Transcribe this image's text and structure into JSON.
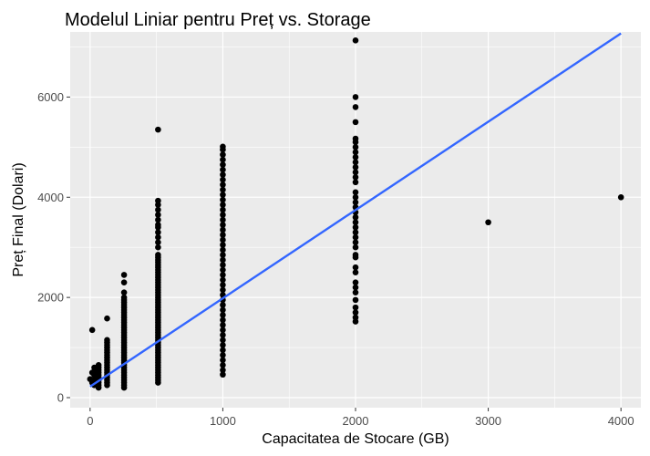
{
  "chart_data": {
    "type": "scatter",
    "title": "Modelul Liniar pentru Preț vs. Storage",
    "xlabel": "Capacitatea de Stocare (GB)",
    "ylabel": "Preț Final (Dolari)",
    "xlim": [
      -150,
      4150
    ],
    "ylim": [
      -200,
      7300
    ],
    "x_ticks": [
      0,
      1000,
      2000,
      3000,
      4000
    ],
    "x_tick_labels": [
      "0",
      "1000",
      "2000",
      "3000",
      "4000"
    ],
    "y_ticks": [
      0,
      2000,
      4000,
      6000
    ],
    "y_tick_labels": [
      "0",
      "2000",
      "4000",
      "6000"
    ],
    "x_minor": [
      500,
      1500,
      2500,
      3500
    ],
    "y_minor": [
      1000,
      3000,
      5000,
      7000
    ],
    "grid": true,
    "legend": "none",
    "colors": {
      "panel_background": "#ebebeb",
      "grid": "#ffffff",
      "points": "#000000",
      "fit_line": "#3366ff"
    },
    "points": [
      {
        "x": 0,
        "y": 370
      },
      {
        "x": 16,
        "y": 500
      },
      {
        "x": 16,
        "y": 300
      },
      {
        "x": 16,
        "y": 1350
      },
      {
        "x": 32,
        "y": 250
      },
      {
        "x": 32,
        "y": 350
      },
      {
        "x": 32,
        "y": 450
      },
      {
        "x": 32,
        "y": 500
      },
      {
        "x": 32,
        "y": 600
      },
      {
        "x": 64,
        "y": 200
      },
      {
        "x": 64,
        "y": 250
      },
      {
        "x": 64,
        "y": 300
      },
      {
        "x": 64,
        "y": 350
      },
      {
        "x": 64,
        "y": 400
      },
      {
        "x": 64,
        "y": 450
      },
      {
        "x": 64,
        "y": 500
      },
      {
        "x": 64,
        "y": 550
      },
      {
        "x": 64,
        "y": 600
      },
      {
        "x": 64,
        "y": 650
      },
      {
        "x": 128,
        "y": 250
      },
      {
        "x": 128,
        "y": 300
      },
      {
        "x": 128,
        "y": 350
      },
      {
        "x": 128,
        "y": 400
      },
      {
        "x": 128,
        "y": 450
      },
      {
        "x": 128,
        "y": 500
      },
      {
        "x": 128,
        "y": 550
      },
      {
        "x": 128,
        "y": 600
      },
      {
        "x": 128,
        "y": 650
      },
      {
        "x": 128,
        "y": 700
      },
      {
        "x": 128,
        "y": 750
      },
      {
        "x": 128,
        "y": 800
      },
      {
        "x": 128,
        "y": 850
      },
      {
        "x": 128,
        "y": 900
      },
      {
        "x": 128,
        "y": 950
      },
      {
        "x": 128,
        "y": 1000
      },
      {
        "x": 128,
        "y": 1050
      },
      {
        "x": 128,
        "y": 1100
      },
      {
        "x": 128,
        "y": 1150
      },
      {
        "x": 128,
        "y": 1580
      },
      {
        "x": 256,
        "y": 200
      },
      {
        "x": 256,
        "y": 250
      },
      {
        "x": 256,
        "y": 300
      },
      {
        "x": 256,
        "y": 350
      },
      {
        "x": 256,
        "y": 400
      },
      {
        "x": 256,
        "y": 450
      },
      {
        "x": 256,
        "y": 500
      },
      {
        "x": 256,
        "y": 550
      },
      {
        "x": 256,
        "y": 600
      },
      {
        "x": 256,
        "y": 650
      },
      {
        "x": 256,
        "y": 700
      },
      {
        "x": 256,
        "y": 750
      },
      {
        "x": 256,
        "y": 800
      },
      {
        "x": 256,
        "y": 850
      },
      {
        "x": 256,
        "y": 900
      },
      {
        "x": 256,
        "y": 950
      },
      {
        "x": 256,
        "y": 1000
      },
      {
        "x": 256,
        "y": 1050
      },
      {
        "x": 256,
        "y": 1100
      },
      {
        "x": 256,
        "y": 1150
      },
      {
        "x": 256,
        "y": 1200
      },
      {
        "x": 256,
        "y": 1250
      },
      {
        "x": 256,
        "y": 1300
      },
      {
        "x": 256,
        "y": 1350
      },
      {
        "x": 256,
        "y": 1400
      },
      {
        "x": 256,
        "y": 1450
      },
      {
        "x": 256,
        "y": 1500
      },
      {
        "x": 256,
        "y": 1550
      },
      {
        "x": 256,
        "y": 1600
      },
      {
        "x": 256,
        "y": 1650
      },
      {
        "x": 256,
        "y": 1700
      },
      {
        "x": 256,
        "y": 1750
      },
      {
        "x": 256,
        "y": 1800
      },
      {
        "x": 256,
        "y": 1850
      },
      {
        "x": 256,
        "y": 1900
      },
      {
        "x": 256,
        "y": 1950
      },
      {
        "x": 256,
        "y": 2000
      },
      {
        "x": 256,
        "y": 2100
      },
      {
        "x": 256,
        "y": 2300
      },
      {
        "x": 256,
        "y": 2450
      },
      {
        "x": 512,
        "y": 300
      },
      {
        "x": 512,
        "y": 350
      },
      {
        "x": 512,
        "y": 400
      },
      {
        "x": 512,
        "y": 450
      },
      {
        "x": 512,
        "y": 500
      },
      {
        "x": 512,
        "y": 550
      },
      {
        "x": 512,
        "y": 600
      },
      {
        "x": 512,
        "y": 650
      },
      {
        "x": 512,
        "y": 700
      },
      {
        "x": 512,
        "y": 750
      },
      {
        "x": 512,
        "y": 800
      },
      {
        "x": 512,
        "y": 850
      },
      {
        "x": 512,
        "y": 900
      },
      {
        "x": 512,
        "y": 950
      },
      {
        "x": 512,
        "y": 1000
      },
      {
        "x": 512,
        "y": 1050
      },
      {
        "x": 512,
        "y": 1100
      },
      {
        "x": 512,
        "y": 1150
      },
      {
        "x": 512,
        "y": 1200
      },
      {
        "x": 512,
        "y": 1250
      },
      {
        "x": 512,
        "y": 1300
      },
      {
        "x": 512,
        "y": 1350
      },
      {
        "x": 512,
        "y": 1400
      },
      {
        "x": 512,
        "y": 1450
      },
      {
        "x": 512,
        "y": 1500
      },
      {
        "x": 512,
        "y": 1550
      },
      {
        "x": 512,
        "y": 1600
      },
      {
        "x": 512,
        "y": 1650
      },
      {
        "x": 512,
        "y": 1700
      },
      {
        "x": 512,
        "y": 1750
      },
      {
        "x": 512,
        "y": 1800
      },
      {
        "x": 512,
        "y": 1850
      },
      {
        "x": 512,
        "y": 1900
      },
      {
        "x": 512,
        "y": 1950
      },
      {
        "x": 512,
        "y": 2000
      },
      {
        "x": 512,
        "y": 2050
      },
      {
        "x": 512,
        "y": 2100
      },
      {
        "x": 512,
        "y": 2150
      },
      {
        "x": 512,
        "y": 2200
      },
      {
        "x": 512,
        "y": 2250
      },
      {
        "x": 512,
        "y": 2300
      },
      {
        "x": 512,
        "y": 2350
      },
      {
        "x": 512,
        "y": 2400
      },
      {
        "x": 512,
        "y": 2450
      },
      {
        "x": 512,
        "y": 2500
      },
      {
        "x": 512,
        "y": 2550
      },
      {
        "x": 512,
        "y": 2600
      },
      {
        "x": 512,
        "y": 2650
      },
      {
        "x": 512,
        "y": 2700
      },
      {
        "x": 512,
        "y": 2750
      },
      {
        "x": 512,
        "y": 2800
      },
      {
        "x": 512,
        "y": 2850
      },
      {
        "x": 512,
        "y": 3000
      },
      {
        "x": 512,
        "y": 3100
      },
      {
        "x": 512,
        "y": 3200
      },
      {
        "x": 512,
        "y": 3300
      },
      {
        "x": 512,
        "y": 3400
      },
      {
        "x": 512,
        "y": 3450
      },
      {
        "x": 512,
        "y": 3550
      },
      {
        "x": 512,
        "y": 3650
      },
      {
        "x": 512,
        "y": 3750
      },
      {
        "x": 512,
        "y": 3850
      },
      {
        "x": 512,
        "y": 3930
      },
      {
        "x": 512,
        "y": 5350
      },
      {
        "x": 1000,
        "y": 460
      },
      {
        "x": 1000,
        "y": 550
      },
      {
        "x": 1000,
        "y": 650
      },
      {
        "x": 1000,
        "y": 750
      },
      {
        "x": 1000,
        "y": 850
      },
      {
        "x": 1000,
        "y": 950
      },
      {
        "x": 1000,
        "y": 1050
      },
      {
        "x": 1000,
        "y": 1150
      },
      {
        "x": 1000,
        "y": 1250
      },
      {
        "x": 1000,
        "y": 1350
      },
      {
        "x": 1000,
        "y": 1450
      },
      {
        "x": 1000,
        "y": 1550
      },
      {
        "x": 1000,
        "y": 1650
      },
      {
        "x": 1000,
        "y": 1750
      },
      {
        "x": 1000,
        "y": 1850
      },
      {
        "x": 1000,
        "y": 1950
      },
      {
        "x": 1000,
        "y": 2050
      },
      {
        "x": 1000,
        "y": 2150
      },
      {
        "x": 1000,
        "y": 2250
      },
      {
        "x": 1000,
        "y": 2350
      },
      {
        "x": 1000,
        "y": 2450
      },
      {
        "x": 1000,
        "y": 2550
      },
      {
        "x": 1000,
        "y": 2650
      },
      {
        "x": 1000,
        "y": 2750
      },
      {
        "x": 1000,
        "y": 2850
      },
      {
        "x": 1000,
        "y": 2950
      },
      {
        "x": 1000,
        "y": 3050
      },
      {
        "x": 1000,
        "y": 3150
      },
      {
        "x": 1000,
        "y": 3250
      },
      {
        "x": 1000,
        "y": 3350
      },
      {
        "x": 1000,
        "y": 3450
      },
      {
        "x": 1000,
        "y": 3550
      },
      {
        "x": 1000,
        "y": 3650
      },
      {
        "x": 1000,
        "y": 3750
      },
      {
        "x": 1000,
        "y": 3850
      },
      {
        "x": 1000,
        "y": 3950
      },
      {
        "x": 1000,
        "y": 4050
      },
      {
        "x": 1000,
        "y": 4150
      },
      {
        "x": 1000,
        "y": 4250
      },
      {
        "x": 1000,
        "y": 4350
      },
      {
        "x": 1000,
        "y": 4450
      },
      {
        "x": 1000,
        "y": 4550
      },
      {
        "x": 1000,
        "y": 4650
      },
      {
        "x": 1000,
        "y": 4750
      },
      {
        "x": 1000,
        "y": 4850
      },
      {
        "x": 1000,
        "y": 4950
      },
      {
        "x": 1000,
        "y": 5010
      },
      {
        "x": 2000,
        "y": 1520
      },
      {
        "x": 2000,
        "y": 1600
      },
      {
        "x": 2000,
        "y": 1700
      },
      {
        "x": 2000,
        "y": 1800
      },
      {
        "x": 2000,
        "y": 1950
      },
      {
        "x": 2000,
        "y": 2100
      },
      {
        "x": 2000,
        "y": 2200
      },
      {
        "x": 2000,
        "y": 2300
      },
      {
        "x": 2000,
        "y": 2500
      },
      {
        "x": 2000,
        "y": 2600
      },
      {
        "x": 2000,
        "y": 2800
      },
      {
        "x": 2000,
        "y": 2850
      },
      {
        "x": 2000,
        "y": 3000
      },
      {
        "x": 2000,
        "y": 3100
      },
      {
        "x": 2000,
        "y": 3200
      },
      {
        "x": 2000,
        "y": 3300
      },
      {
        "x": 2000,
        "y": 3400
      },
      {
        "x": 2000,
        "y": 3500
      },
      {
        "x": 2000,
        "y": 3600
      },
      {
        "x": 2000,
        "y": 3700
      },
      {
        "x": 2000,
        "y": 3800
      },
      {
        "x": 2000,
        "y": 3900
      },
      {
        "x": 2000,
        "y": 4000
      },
      {
        "x": 2000,
        "y": 4100
      },
      {
        "x": 2000,
        "y": 4300
      },
      {
        "x": 2000,
        "y": 4400
      },
      {
        "x": 2000,
        "y": 4500
      },
      {
        "x": 2000,
        "y": 4600
      },
      {
        "x": 2000,
        "y": 4700
      },
      {
        "x": 2000,
        "y": 4800
      },
      {
        "x": 2000,
        "y": 4900
      },
      {
        "x": 2000,
        "y": 5000
      },
      {
        "x": 2000,
        "y": 5100
      },
      {
        "x": 2000,
        "y": 5170
      },
      {
        "x": 2000,
        "y": 5500
      },
      {
        "x": 2000,
        "y": 5800
      },
      {
        "x": 2000,
        "y": 6000
      },
      {
        "x": 2000,
        "y": 7130
      },
      {
        "x": 3000,
        "y": 3500
      },
      {
        "x": 4000,
        "y": 4000
      }
    ],
    "fit_line": {
      "x": [
        0,
        4000
      ],
      "y": [
        220,
        7270
      ]
    }
  }
}
